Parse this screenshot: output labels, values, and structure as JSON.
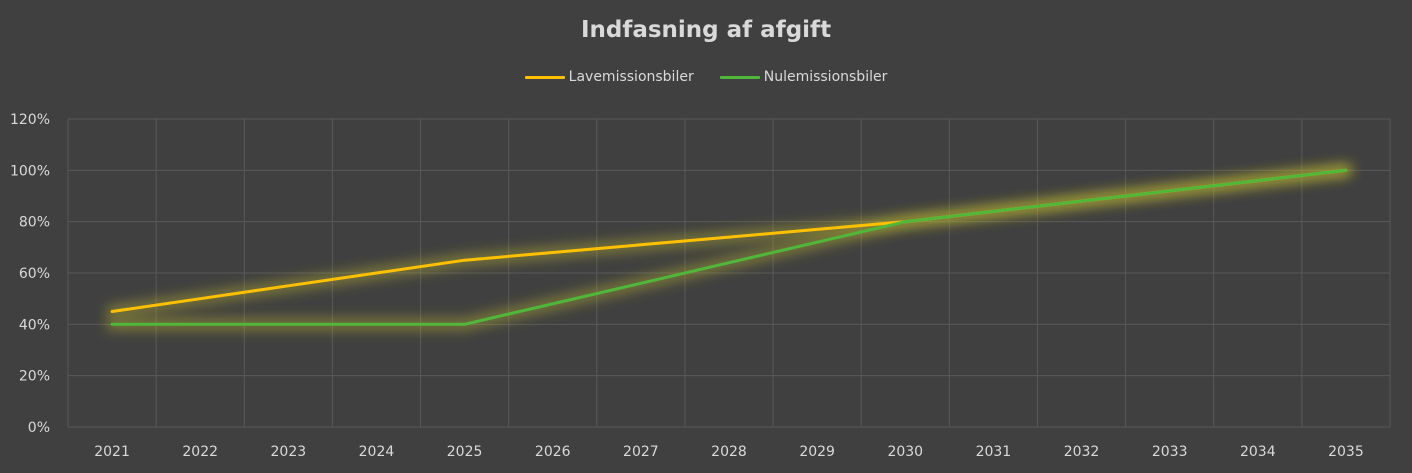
{
  "chart_data": {
    "type": "line",
    "title": "Indfasning af afgift",
    "xlabel": "",
    "ylabel": "",
    "categories": [
      "2021",
      "2022",
      "2023",
      "2024",
      "2025",
      "2026",
      "2027",
      "2028",
      "2029",
      "2030",
      "2031",
      "2032",
      "2033",
      "2034",
      "2035"
    ],
    "series": [
      {
        "name": "Lavemissionsbiler",
        "color": "#ffc000",
        "values": [
          45,
          50,
          55,
          60,
          65,
          68,
          71,
          74,
          77,
          80,
          84,
          88,
          92,
          96,
          100
        ]
      },
      {
        "name": "Nulemissionsbiler",
        "color": "#4fb83a",
        "values": [
          40,
          40,
          40,
          40,
          40,
          48,
          56,
          64,
          72,
          80,
          84,
          88,
          92,
          96,
          100
        ]
      }
    ],
    "ylim": [
      0,
      120
    ],
    "ytick_labels": [
      "0%",
      "20%",
      "40%",
      "60%",
      "80%",
      "100%",
      "120%"
    ],
    "grid": true,
    "legend_position": "top"
  }
}
